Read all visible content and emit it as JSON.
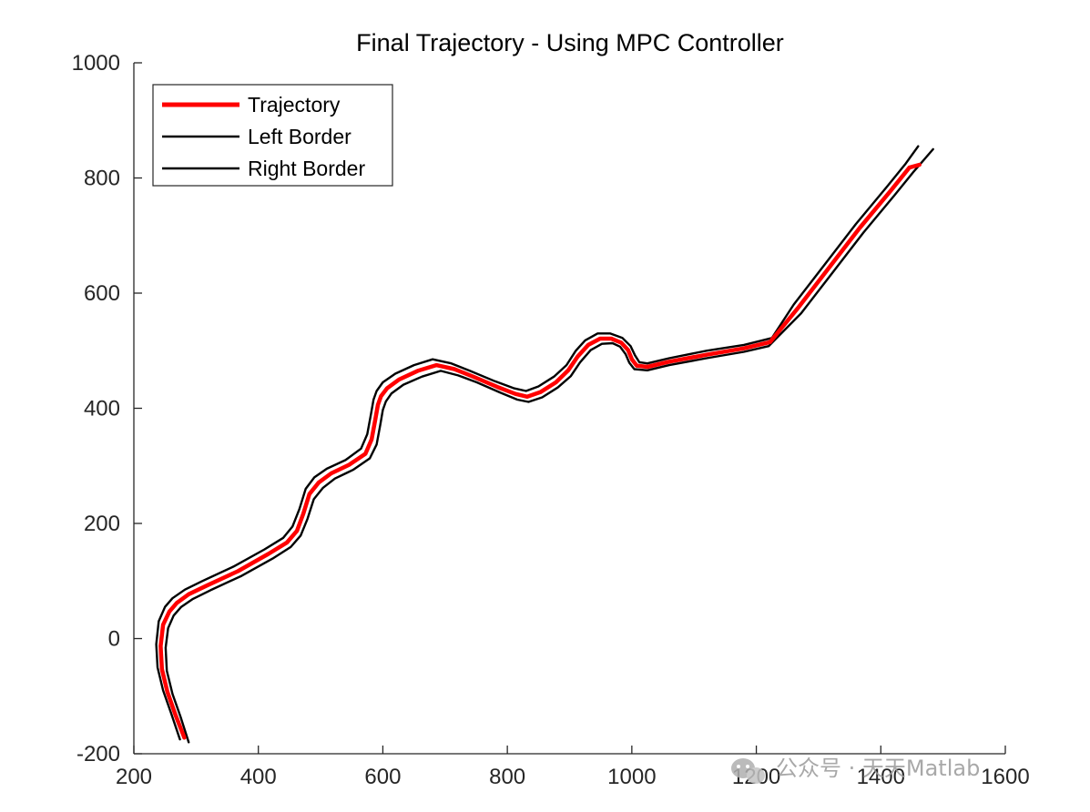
{
  "chart_data": {
    "type": "line",
    "title": "Final Trajectory - Using MPC Controller",
    "xlabel": "",
    "ylabel": "",
    "xlim": [
      200,
      1600
    ],
    "ylim": [
      -200,
      1000
    ],
    "xticks": [
      200,
      400,
      600,
      800,
      1000,
      1200,
      1400,
      1600
    ],
    "yticks": [
      -200,
      0,
      200,
      400,
      600,
      800,
      1000
    ],
    "grid": false,
    "legend_position": "top-left",
    "series": [
      {
        "name": "Left Border",
        "color": "#000000",
        "x": [
          274,
          260,
          247,
          238,
          236,
          240,
          250,
          262,
          282,
          310,
          360,
          410,
          440,
          455,
          466,
          476,
          490,
          510,
          540,
          565,
          575,
          581,
          585,
          590,
          600,
          620,
          650,
          680,
          710,
          740,
          780,
          810,
          830,
          850,
          875,
          895,
          910,
          925,
          945,
          965,
          985,
          998,
          1005,
          1012,
          1025,
          1060,
          1120,
          1180,
          1225,
          1260,
          1310,
          1360,
          1410,
          1440,
          1460
        ],
        "y": [
          -175,
          -130,
          -90,
          -50,
          -10,
          30,
          55,
          70,
          85,
          100,
          125,
          155,
          175,
          195,
          225,
          260,
          280,
          295,
          310,
          330,
          355,
          390,
          415,
          430,
          445,
          460,
          475,
          485,
          478,
          465,
          447,
          435,
          430,
          438,
          455,
          475,
          500,
          518,
          530,
          530,
          522,
          508,
          492,
          480,
          478,
          487,
          500,
          510,
          522,
          580,
          650,
          720,
          785,
          825,
          855
        ]
      },
      {
        "name": "Right Border",
        "color": "#000000",
        "x": [
          288,
          275,
          262,
          253,
          251,
          255,
          264,
          276,
          295,
          323,
          373,
          423,
          452,
          468,
          479,
          489,
          504,
          523,
          552,
          579,
          590,
          596,
          600,
          605,
          614,
          633,
          663,
          693,
          721,
          751,
          789,
          816,
          834,
          856,
          881,
          902,
          917,
          934,
          952,
          969,
          981,
          990,
          996,
          1004,
          1025,
          1060,
          1120,
          1180,
          1220,
          1272,
          1322,
          1372,
          1422,
          1452,
          1484
        ],
        "y": [
          -180,
          -136,
          -96,
          -56,
          -16,
          18,
          40,
          55,
          69,
          84,
          109,
          139,
          159,
          179,
          208,
          242,
          262,
          278,
          293,
          313,
          337,
          372,
          397,
          412,
          426,
          441,
          455,
          465,
          457,
          445,
          427,
          415,
          411,
          419,
          436,
          456,
          480,
          501,
          512,
          513,
          507,
          494,
          479,
          468,
          466,
          475,
          487,
          498,
          508,
          565,
          635,
          705,
          770,
          810,
          850
        ]
      },
      {
        "name": "Trajectory",
        "color": "#ff0000",
        "x": [
          281,
          267,
          254,
          245,
          243,
          247,
          257,
          269,
          288,
          317,
          367,
          416,
          446,
          462,
          472,
          482,
          497,
          517,
          546,
          572,
          582,
          588,
          592,
          597,
          607,
          626,
          656,
          686,
          715,
          745,
          784,
          813,
          832,
          853,
          878,
          898,
          913,
          930,
          949,
          967,
          983,
          994,
          1000,
          1008,
          1025,
          1060,
          1120,
          1180,
          1222,
          1266,
          1316,
          1366,
          1416,
          1446,
          1462
        ],
        "y": [
          -172,
          -133,
          -93,
          -53,
          -13,
          24,
          47,
          62,
          77,
          92,
          117,
          147,
          167,
          187,
          216,
          251,
          271,
          287,
          302,
          321,
          346,
          381,
          406,
          421,
          435,
          450,
          465,
          475,
          468,
          455,
          437,
          425,
          420,
          428,
          445,
          466,
          490,
          510,
          521,
          521,
          514,
          501,
          485,
          474,
          472,
          481,
          493,
          504,
          515,
          573,
          643,
          713,
          778,
          818,
          823
        ]
      }
    ]
  },
  "watermark": {
    "icon": "wechat-icon",
    "text": "公众号 · 天天Matlab"
  }
}
